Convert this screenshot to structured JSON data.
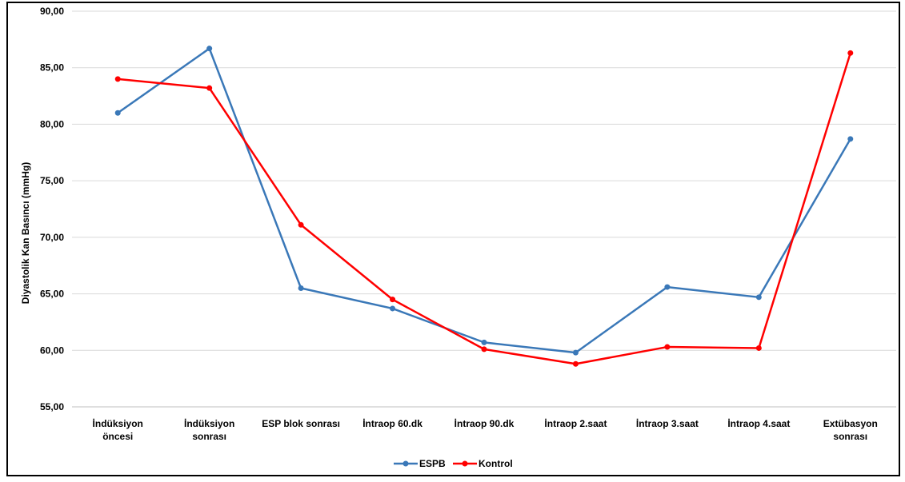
{
  "chart_data": {
    "type": "line",
    "ylabel": "Diyastolik Kan Basıncı (mmHg)",
    "xlabel": "",
    "ylim": [
      55,
      90
    ],
    "yticks": [
      55,
      60,
      65,
      70,
      75,
      80,
      85,
      90
    ],
    "ytick_labels": [
      "55,00",
      "60,00",
      "65,00",
      "70,00",
      "75,00",
      "80,00",
      "85,00",
      "90,00"
    ],
    "grid": true,
    "legend_position": "bottom-center",
    "categories": [
      [
        "İndüksiyon",
        "öncesi"
      ],
      [
        "İndüksiyon",
        "sonrası"
      ],
      [
        "ESP blok sonrası"
      ],
      [
        "İntraop 60.dk"
      ],
      [
        "İntraop 90.dk"
      ],
      [
        "İntraop 2.saat"
      ],
      [
        "İntraop 3.saat"
      ],
      [
        "İntraop 4.saat"
      ],
      [
        "Extübasyon",
        "sonrası"
      ]
    ],
    "series": [
      {
        "name": "ESPB",
        "color": "#3a78b8",
        "values": [
          81.0,
          86.7,
          65.5,
          63.7,
          60.7,
          59.8,
          65.6,
          64.7,
          78.7
        ]
      },
      {
        "name": "Kontrol",
        "color": "#ff0000",
        "values": [
          84.0,
          83.2,
          71.1,
          64.5,
          60.1,
          58.8,
          60.3,
          60.2,
          86.3
        ]
      }
    ]
  }
}
